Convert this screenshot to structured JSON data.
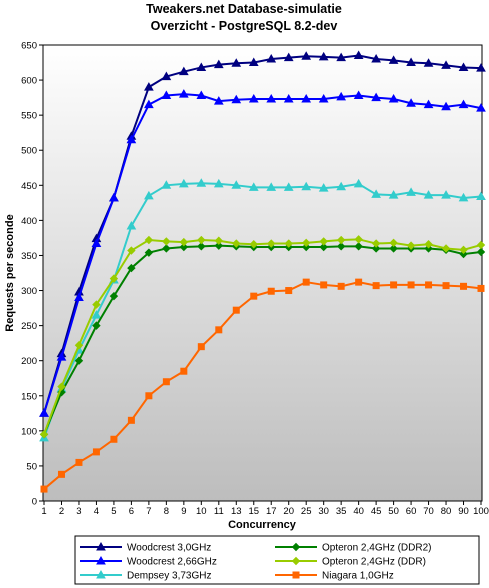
{
  "chart_data": {
    "type": "line",
    "title": "Tweakers.net Database-simulatie",
    "subtitle": "Overzicht - PostgreSQL 8.2-dev",
    "xlabel": "Concurrency",
    "ylabel": "Requests per seconde",
    "ylim": [
      0,
      650
    ],
    "yticks": [
      0,
      50,
      100,
      150,
      200,
      250,
      300,
      350,
      400,
      450,
      500,
      550,
      600,
      650
    ],
    "categories": [
      "1",
      "2",
      "3",
      "4",
      "5",
      "6",
      "7",
      "8",
      "9",
      "10",
      "11",
      "13",
      "15",
      "17",
      "20",
      "25",
      "30",
      "35",
      "40",
      "45",
      "50",
      "60",
      "70",
      "80",
      "90",
      "100"
    ],
    "grid": false,
    "legend_position": "bottom",
    "series": [
      {
        "name": "Woodcrest 3,0GHz",
        "color": "#000080",
        "marker": "triangle",
        "values": [
          125,
          210,
          298,
          374,
          432,
          520,
          590,
          605,
          612,
          618,
          622,
          624,
          625,
          630,
          632,
          634,
          633,
          632,
          635,
          630,
          628,
          625,
          624,
          621,
          618,
          617
        ]
      },
      {
        "name": "Woodcrest 2,66GHz",
        "color": "#0000ff",
        "marker": "triangle",
        "values": [
          125,
          205,
          290,
          367,
          432,
          515,
          565,
          578,
          580,
          578,
          570,
          572,
          573,
          573,
          573,
          573,
          573,
          576,
          578,
          575,
          573,
          567,
          565,
          562,
          565,
          560
        ]
      },
      {
        "name": "Dempsey 3,73GHz",
        "color": "#33cccc",
        "marker": "triangle",
        "values": [
          90,
          160,
          215,
          265,
          315,
          392,
          435,
          450,
          452,
          453,
          452,
          450,
          447,
          447,
          447,
          448,
          446,
          448,
          452,
          437,
          436,
          440,
          436,
          436,
          432,
          434
        ]
      },
      {
        "name": "Opteron 2,4GHz (DDR2)",
        "color": "#008000",
        "marker": "diamond",
        "values": [
          95,
          155,
          200,
          250,
          292,
          332,
          354,
          360,
          362,
          363,
          364,
          363,
          362,
          362,
          362,
          362,
          362,
          363,
          363,
          360,
          360,
          360,
          360,
          358,
          352,
          355
        ]
      },
      {
        "name": "Opteron 2,4GHz (DDR)",
        "color": "#99cc00",
        "marker": "diamond",
        "values": [
          95,
          163,
          222,
          280,
          317,
          357,
          372,
          370,
          369,
          372,
          371,
          367,
          366,
          367,
          367,
          368,
          370,
          372,
          373,
          367,
          368,
          364,
          366,
          360,
          358,
          365
        ]
      },
      {
        "name": "Niagara 1,0GHz",
        "color": "#ff6600",
        "marker": "square",
        "values": [
          17,
          38,
          55,
          70,
          88,
          115,
          150,
          170,
          185,
          220,
          244,
          272,
          292,
          299,
          300,
          312,
          308,
          306,
          312,
          307,
          308,
          308,
          308,
          307,
          306,
          303
        ]
      }
    ]
  }
}
